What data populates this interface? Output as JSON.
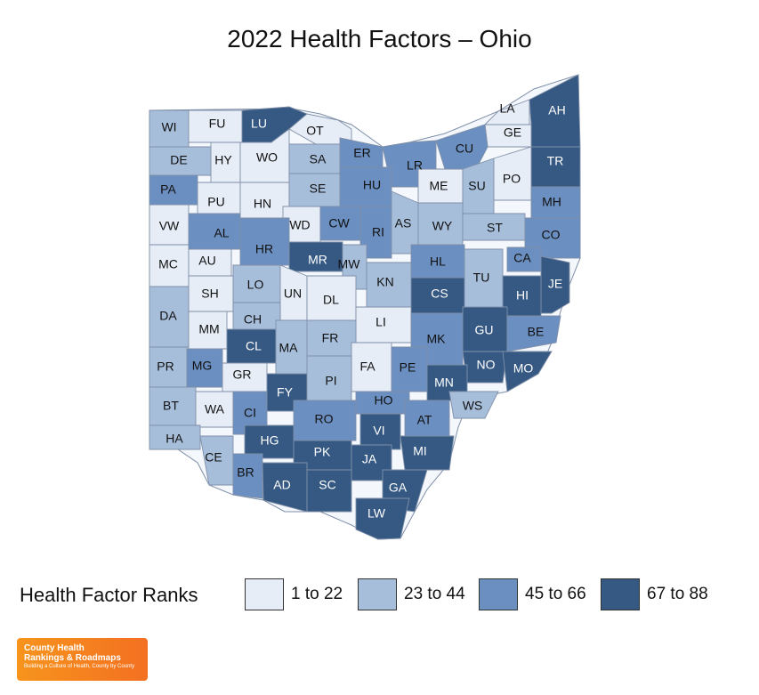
{
  "title": "2022 Health Factors – Ohio",
  "legend": {
    "title": "Health Factor Ranks",
    "items": [
      {
        "label": "1 to 22",
        "color": "#e6edf6"
      },
      {
        "label": "23 to 44",
        "color": "#a7bedb"
      },
      {
        "label": "45 to 66",
        "color": "#6b8fc0"
      },
      {
        "label": "67 to 88",
        "color": "#365983"
      }
    ]
  },
  "counties": [
    {
      "abbr": "WI",
      "bin": 1
    },
    {
      "abbr": "FU",
      "bin": 0
    },
    {
      "abbr": "LU",
      "bin": 3
    },
    {
      "abbr": "OT",
      "bin": 0
    },
    {
      "abbr": "LA",
      "bin": 0
    },
    {
      "abbr": "AH",
      "bin": 3
    },
    {
      "abbr": "GE",
      "bin": 0
    },
    {
      "abbr": "DE",
      "bin": 1
    },
    {
      "abbr": "HY",
      "bin": 0
    },
    {
      "abbr": "WO",
      "bin": 0
    },
    {
      "abbr": "SA",
      "bin": 1
    },
    {
      "abbr": "ER",
      "bin": 2
    },
    {
      "abbr": "LR",
      "bin": 2
    },
    {
      "abbr": "CU",
      "bin": 2
    },
    {
      "abbr": "TR",
      "bin": 3
    },
    {
      "abbr": "PA",
      "bin": 2
    },
    {
      "abbr": "PU",
      "bin": 0
    },
    {
      "abbr": "HN",
      "bin": 0
    },
    {
      "abbr": "SE",
      "bin": 1
    },
    {
      "abbr": "HU",
      "bin": 2
    },
    {
      "abbr": "ME",
      "bin": 0
    },
    {
      "abbr": "SU",
      "bin": 1
    },
    {
      "abbr": "PO",
      "bin": 0
    },
    {
      "abbr": "MH",
      "bin": 2
    },
    {
      "abbr": "VW",
      "bin": 0
    },
    {
      "abbr": "AL",
      "bin": 2
    },
    {
      "abbr": "WD",
      "bin": 0
    },
    {
      "abbr": "CW",
      "bin": 2
    },
    {
      "abbr": "RI",
      "bin": 2
    },
    {
      "abbr": "AS",
      "bin": 1
    },
    {
      "abbr": "WY",
      "bin": 1
    },
    {
      "abbr": "ST",
      "bin": 1
    },
    {
      "abbr": "CO",
      "bin": 2
    },
    {
      "abbr": "MC",
      "bin": 0
    },
    {
      "abbr": "AU",
      "bin": 0
    },
    {
      "abbr": "HR",
      "bin": 2
    },
    {
      "abbr": "MR",
      "bin": 3
    },
    {
      "abbr": "MW",
      "bin": 1
    },
    {
      "abbr": "HL",
      "bin": 2
    },
    {
      "abbr": "CA",
      "bin": 2
    },
    {
      "abbr": "JE",
      "bin": 3
    },
    {
      "abbr": "LO",
      "bin": 1
    },
    {
      "abbr": "KN",
      "bin": 1
    },
    {
      "abbr": "TU",
      "bin": 1
    },
    {
      "abbr": "SH",
      "bin": 0
    },
    {
      "abbr": "UN",
      "bin": 0
    },
    {
      "abbr": "DL",
      "bin": 0
    },
    {
      "abbr": "CS",
      "bin": 3
    },
    {
      "abbr": "HI",
      "bin": 3
    },
    {
      "abbr": "DA",
      "bin": 1
    },
    {
      "abbr": "CH",
      "bin": 1
    },
    {
      "abbr": "LI",
      "bin": 0
    },
    {
      "abbr": "MM",
      "bin": 0
    },
    {
      "abbr": "CL",
      "bin": 3
    },
    {
      "abbr": "MA",
      "bin": 1
    },
    {
      "abbr": "FR",
      "bin": 1
    },
    {
      "abbr": "MK",
      "bin": 2
    },
    {
      "abbr": "GU",
      "bin": 3
    },
    {
      "abbr": "BE",
      "bin": 2
    },
    {
      "abbr": "PR",
      "bin": 1
    },
    {
      "abbr": "MG",
      "bin": 2
    },
    {
      "abbr": "GR",
      "bin": 0
    },
    {
      "abbr": "FA",
      "bin": 0
    },
    {
      "abbr": "PE",
      "bin": 2
    },
    {
      "abbr": "NO",
      "bin": 3
    },
    {
      "abbr": "MO",
      "bin": 3
    },
    {
      "abbr": "FY",
      "bin": 3
    },
    {
      "abbr": "PI",
      "bin": 1
    },
    {
      "abbr": "MN",
      "bin": 3
    },
    {
      "abbr": "BT",
      "bin": 1
    },
    {
      "abbr": "WA",
      "bin": 0
    },
    {
      "abbr": "CI",
      "bin": 2
    },
    {
      "abbr": "HO",
      "bin": 2
    },
    {
      "abbr": "WS",
      "bin": 1
    },
    {
      "abbr": "RO",
      "bin": 2
    },
    {
      "abbr": "AT",
      "bin": 2
    },
    {
      "abbr": "HA",
      "bin": 1
    },
    {
      "abbr": "HG",
      "bin": 3
    },
    {
      "abbr": "VI",
      "bin": 3
    },
    {
      "abbr": "CE",
      "bin": 1
    },
    {
      "abbr": "PK",
      "bin": 3
    },
    {
      "abbr": "MI",
      "bin": 3
    },
    {
      "abbr": "BR",
      "bin": 2
    },
    {
      "abbr": "JA",
      "bin": 3
    },
    {
      "abbr": "AD",
      "bin": 3
    },
    {
      "abbr": "SC",
      "bin": 3
    },
    {
      "abbr": "GA",
      "bin": 3
    },
    {
      "abbr": "LW",
      "bin": 3
    }
  ],
  "logo": {
    "line1": "County Health",
    "line2": "Rankings & Roadmaps",
    "tagline": "Building a Culture of Health, County by County"
  }
}
